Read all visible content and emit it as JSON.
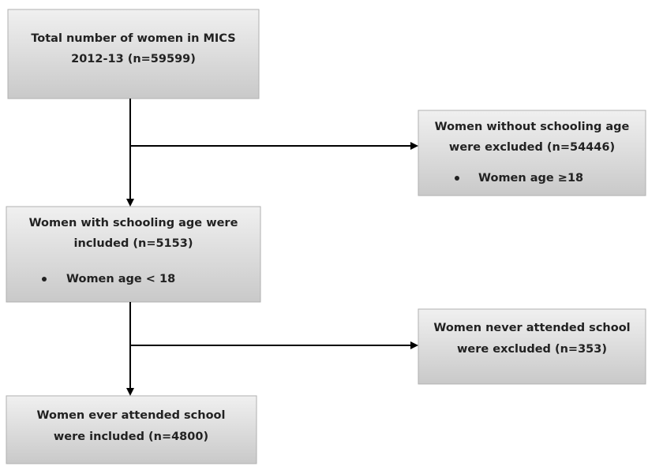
{
  "nodes": [
    {
      "lines": [
        "Total number of women in MICS",
        "2012-13 (n=59599)"
      ]
    },
    {
      "lines": [
        "Women without schooling age",
        "were excluded (n=54446)"
      ],
      "bullets": [
        "Women age ≥18"
      ]
    },
    {
      "lines": [
        "Women with schooling age were",
        "included (n=5153)"
      ],
      "bullets": [
        "Women age < 18"
      ]
    },
    {
      "lines": [
        "Women never attended school",
        "were excluded (n=353)"
      ]
    },
    {
      "lines": [
        "Women ever attended school",
        "were included (n=4800)"
      ]
    }
  ]
}
